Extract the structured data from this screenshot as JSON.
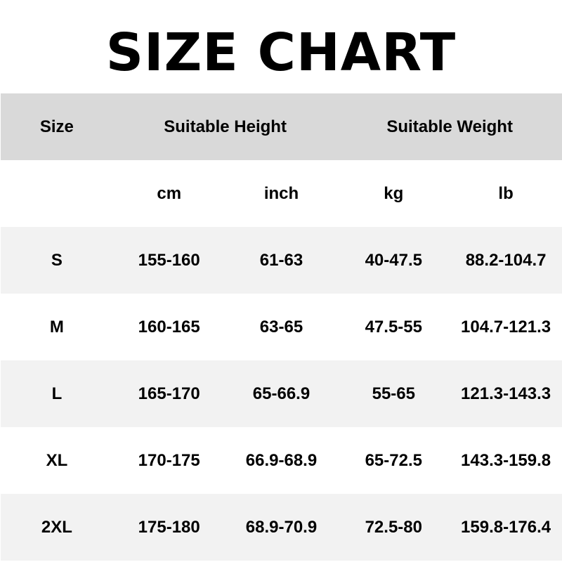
{
  "title": "SIZE CHART",
  "header": {
    "size": "Size",
    "height": "Suitable Height",
    "weight": "Suitable Weight"
  },
  "units": [
    "",
    "cm",
    "inch",
    "kg",
    "lb"
  ],
  "rows": [
    {
      "size": "S",
      "cm": "155-160",
      "inch": "61-63",
      "kg": "40-47.5",
      "lb": "88.2-104.7"
    },
    {
      "size": "M",
      "cm": "160-165",
      "inch": "63-65",
      "kg": "47.5-55",
      "lb": "104.7-121.3"
    },
    {
      "size": "L",
      "cm": "165-170",
      "inch": "65-66.9",
      "kg": "55-65",
      "lb": "121.3-143.3"
    },
    {
      "size": "XL",
      "cm": "170-175",
      "inch": "66.9-68.9",
      "kg": "65-72.5",
      "lb": "143.3-159.8"
    },
    {
      "size": "2XL",
      "cm": "175-180",
      "inch": "68.9-70.9",
      "kg": "72.5-80",
      "lb": "159.8-176.4"
    }
  ],
  "colors": {
    "header_bg": "#d9d9d9",
    "stripe_bg": "#f2f2f2"
  }
}
